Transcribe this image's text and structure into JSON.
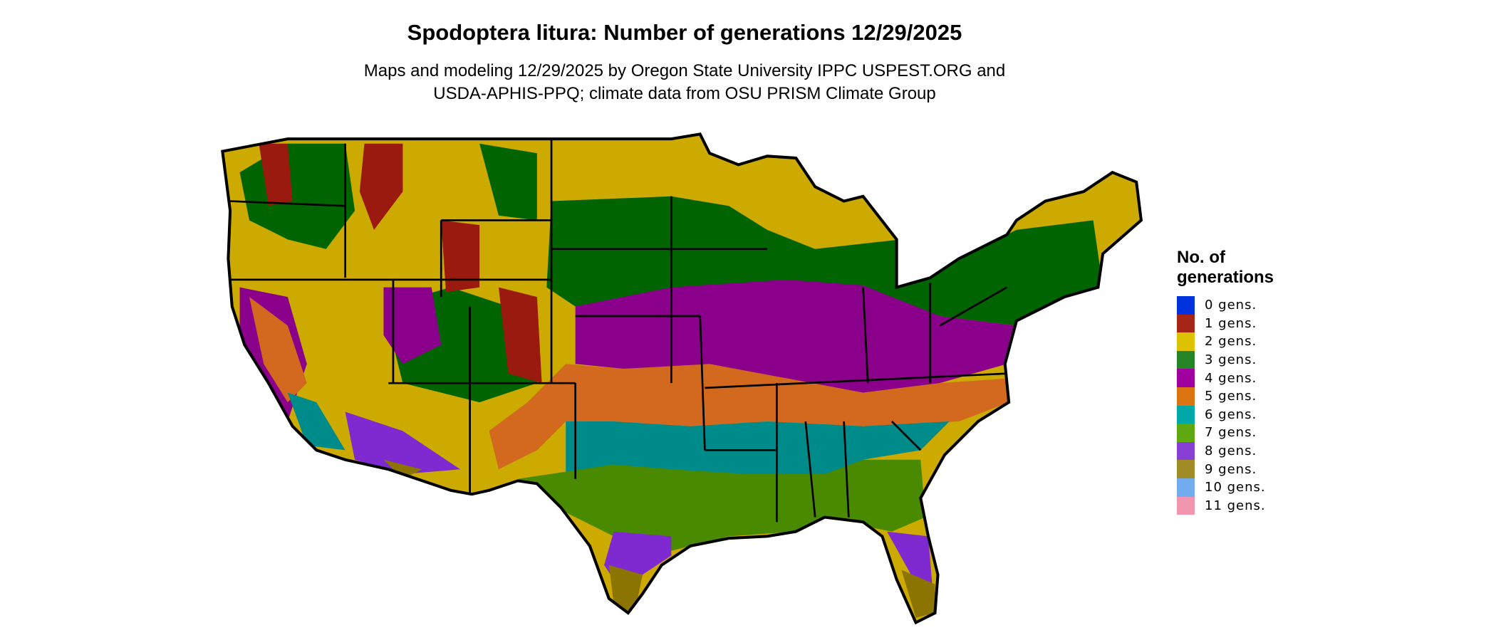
{
  "title": "Spodoptera litura: Number of generations 12/29/2025",
  "subtitle_lines": [
    "Maps and modeling 12/29/2025 by Oregon State University IPPC USPEST.ORG and",
    "USDA-APHIS-PPQ; climate data from OSU PRISM Climate Group"
  ],
  "legend": {
    "title_lines": [
      "No. of",
      "generations"
    ],
    "items": [
      {
        "label": "0 gens.",
        "color": "#0033dd"
      },
      {
        "label": "1 gens.",
        "color": "#a52616"
      },
      {
        "label": "2 gens.",
        "color": "#dcc200"
      },
      {
        "label": "3 gens.",
        "color": "#248426"
      },
      {
        "label": "4 gens.",
        "color": "#a000a0"
      },
      {
        "label": "5 gens.",
        "color": "#dc7412"
      },
      {
        "label": "6 gens.",
        "color": "#00a8a8"
      },
      {
        "label": "7 gens.",
        "color": "#60a810"
      },
      {
        "label": "8 gens.",
        "color": "#8840d4"
      },
      {
        "label": "9 gens.",
        "color": "#a08c26"
      },
      {
        "label": "10 gens.",
        "color": "#74acf0"
      },
      {
        "label": "11 gens.",
        "color": "#f296b0"
      }
    ]
  },
  "map_colors": {
    "gen1": "#9a1a10",
    "gen2": "#ccaa00",
    "gen3": "#006400",
    "gen4": "#8b008b",
    "gen5": "#d2691e",
    "gen6": "#008b8b",
    "gen7": "#4a8a00",
    "gen8": "#7e2ad0",
    "gen9": "#8b7500",
    "gen10": "#4a8ae8",
    "border": "#000000"
  }
}
